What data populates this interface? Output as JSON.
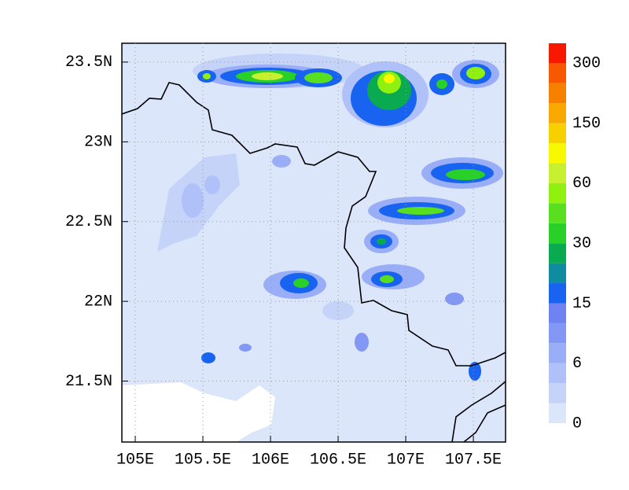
{
  "chart_data": {
    "type": "contour",
    "xlim": [
      104.901,
      107.738
    ],
    "ylim": [
      21.118,
      23.618
    ],
    "xticks": [
      {
        "value": 105,
        "label": "105E"
      },
      {
        "value": 105.5,
        "label": "105.5E"
      },
      {
        "value": 106,
        "label": "106E"
      },
      {
        "value": 106.5,
        "label": "106.5E"
      },
      {
        "value": 107,
        "label": "107E"
      },
      {
        "value": 107.5,
        "label": "107.5E"
      }
    ],
    "yticks": [
      {
        "value": 21.5,
        "label": "21.5N"
      },
      {
        "value": 22,
        "label": "22N"
      },
      {
        "value": 22.5,
        "label": "22.5N"
      },
      {
        "value": 23,
        "label": "23N"
      },
      {
        "value": 23.5,
        "label": "23.5N"
      }
    ],
    "grid": true,
    "colorbar": {
      "colors": [
        "#dce6fa",
        "#c5d3f8",
        "#afc1f8",
        "#99aef6",
        "#8298f4",
        "#6e82f2",
        "#1864f0",
        "#0f8ca0",
        "#0aaa50",
        "#28d028",
        "#58e020",
        "#90f010",
        "#c8f030",
        "#f8f800",
        "#f8d000",
        "#f8a800",
        "#f88000",
        "#f85800",
        "#f81800"
      ],
      "ticks": [
        0,
        6,
        15,
        30,
        60,
        150,
        300
      ]
    }
  }
}
